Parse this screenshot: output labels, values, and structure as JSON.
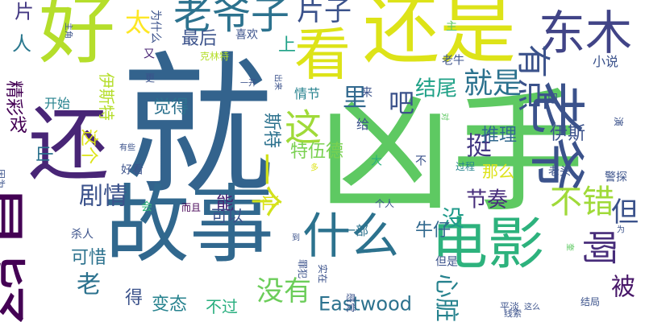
{
  "word_cloud": {
    "words": [
      {
        "text": "就",
        "color": "#33638d"
      },
      {
        "text": "凶手",
        "color": "#5ec962"
      },
      {
        "text": "还是",
        "color": "#dde318"
      },
      {
        "text": "好",
        "color": "#b5de2b"
      },
      {
        "text": "故事",
        "color": "#31688e"
      },
      {
        "text": "还",
        "color": "#482576"
      },
      {
        "text": "悬疑",
        "color": "#440154"
      },
      {
        "text": "电影",
        "color": "#2db27d"
      },
      {
        "text": "看",
        "color": "#dde318"
      },
      {
        "text": "东木",
        "color": "#414487"
      },
      {
        "text": "老爷",
        "color": "#3b528b"
      },
      {
        "text": "老爷子",
        "color": "#2c728e"
      },
      {
        "text": "什么",
        "color": "#2c728e"
      },
      {
        "text": "片子",
        "color": "#3b528b"
      },
      {
        "text": "有点",
        "color": "#3b528b"
      },
      {
        "text": "太",
        "color": "#fde725"
      },
      {
        "text": "最后",
        "color": "#3b528b"
      },
      {
        "text": "就是",
        "color": "#2c728e"
      },
      {
        "text": "吧",
        "color": "#3b528b"
      },
      {
        "text": "结尾",
        "color": "#1fa187"
      },
      {
        "text": "这",
        "color": "#a0da39"
      },
      {
        "text": "一个",
        "color": "#d0e11c"
      },
      {
        "text": "啊",
        "color": "#472c7a"
      },
      {
        "text": "但",
        "color": "#3b528b"
      },
      {
        "text": "不错",
        "color": "#a0da39"
      },
      {
        "text": "被",
        "color": "#481769"
      },
      {
        "text": "剧情",
        "color": "#3b528b"
      },
      {
        "text": "老",
        "color": "#2c728e"
      },
      {
        "text": "没有",
        "color": "#6ccd5a"
      },
      {
        "text": "Eastwood",
        "color": "#2c728e"
      },
      {
        "text": "心脏",
        "color": "#26828e"
      },
      {
        "text": "上",
        "color": "#1fa187"
      },
      {
        "text": "里",
        "color": "#31688e"
      },
      {
        "text": "挺",
        "color": "#443983"
      },
      {
        "text": "节奏",
        "color": "#472d7b"
      },
      {
        "text": "没",
        "color": "#1f9a8a"
      },
      {
        "text": "人",
        "color": "#2a788e"
      },
      {
        "text": "片",
        "color": "#443983"
      },
      {
        "text": "精彩",
        "color": "#440154"
      },
      {
        "text": "戏",
        "color": "#440154"
      },
      {
        "text": "山",
        "color": "#2c728e"
      },
      {
        "text": "斯特",
        "color": "#2c728e"
      },
      {
        "text": "特伍德",
        "color": "#7ad151"
      },
      {
        "text": "这个",
        "color": "#dde318"
      },
      {
        "text": "觉得",
        "color": "#2c728e"
      },
      {
        "text": "可惜",
        "color": "#2c728e"
      },
      {
        "text": "得",
        "color": "#3b528b"
      },
      {
        "text": "变态",
        "color": "#26828e"
      },
      {
        "text": "不过",
        "color": "#29af7f"
      },
      {
        "text": "伊斯",
        "color": "#3b528b"
      },
      {
        "text": "伊斯特",
        "color": "#b5de2b"
      },
      {
        "text": "推理",
        "color": "#31688e"
      },
      {
        "text": "牛仔",
        "color": "#31688e"
      },
      {
        "text": "能",
        "color": "#482475"
      },
      {
        "text": "可以",
        "color": "#3b528b"
      },
      {
        "text": "让",
        "color": "#dde318"
      },
      {
        "text": "一部",
        "color": "#2c728e"
      },
      {
        "text": "那么",
        "color": "#dde318"
      },
      {
        "text": "开始",
        "color": "#26828e"
      },
      {
        "text": "小说",
        "color": "#3b528b"
      },
      {
        "text": "情节",
        "color": "#26828e"
      },
      {
        "text": "给",
        "color": "#3b528b"
      },
      {
        "text": "喜欢",
        "color": "#3b528b"
      },
      {
        "text": "大",
        "color": "#29af7f"
      },
      {
        "text": "不",
        "color": "#3b528b"
      },
      {
        "text": "主",
        "color": "#5ec962"
      },
      {
        "text": "又",
        "color": "#482475"
      },
      {
        "text": "为什么",
        "color": "#3b528b"
      },
      {
        "text": "克林特",
        "color": "#b5de2b"
      },
      {
        "text": "老牛",
        "color": "#3b528b"
      },
      {
        "text": "来",
        "color": "#3b528b"
      },
      {
        "text": "把",
        "color": "#3b528b"
      },
      {
        "text": "杀人",
        "color": "#3b528b"
      },
      {
        "text": "会",
        "color": "#35b779"
      },
      {
        "text": "而且",
        "color": "#440154"
      },
      {
        "text": "老头",
        "color": "#3b528b"
      },
      {
        "text": "警探",
        "color": "#3b528b"
      },
      {
        "text": "过程",
        "color": "#26828e"
      },
      {
        "text": "但是",
        "color": "#3b528b"
      },
      {
        "text": "结局",
        "color": "#3b528b"
      },
      {
        "text": "平淡",
        "color": "#3b528b"
      },
      {
        "text": "线索",
        "color": "#3b528b"
      },
      {
        "text": "这么",
        "color": "#3b528b"
      },
      {
        "text": "好看",
        "color": "#3b528b"
      },
      {
        "text": "有些",
        "color": "#3b528b"
      },
      {
        "text": "主角",
        "color": "#3b528b"
      },
      {
        "text": "一开",
        "color": "#3b528b"
      },
      {
        "text": "出来",
        "color": "#3b528b"
      },
      {
        "text": "因为",
        "color": "#3b528b"
      },
      {
        "text": "多",
        "color": "#dde318"
      },
      {
        "text": "个人",
        "color": "#3b528b"
      },
      {
        "text": "到",
        "color": "#3b528b"
      },
      {
        "text": "罪犯",
        "color": "#3b528b"
      },
      {
        "text": "实在",
        "color": "#3b528b"
      },
      {
        "text": "感觉",
        "color": "#3b528b"
      },
      {
        "text": "为",
        "color": "#3b528b"
      },
      {
        "text": "更",
        "color": "#3b528b"
      },
      {
        "text": "对",
        "color": "#5ec962"
      },
      {
        "text": "演",
        "color": "#3b528b"
      },
      {
        "text": "奎",
        "color": "#5ec962"
      }
    ]
  }
}
